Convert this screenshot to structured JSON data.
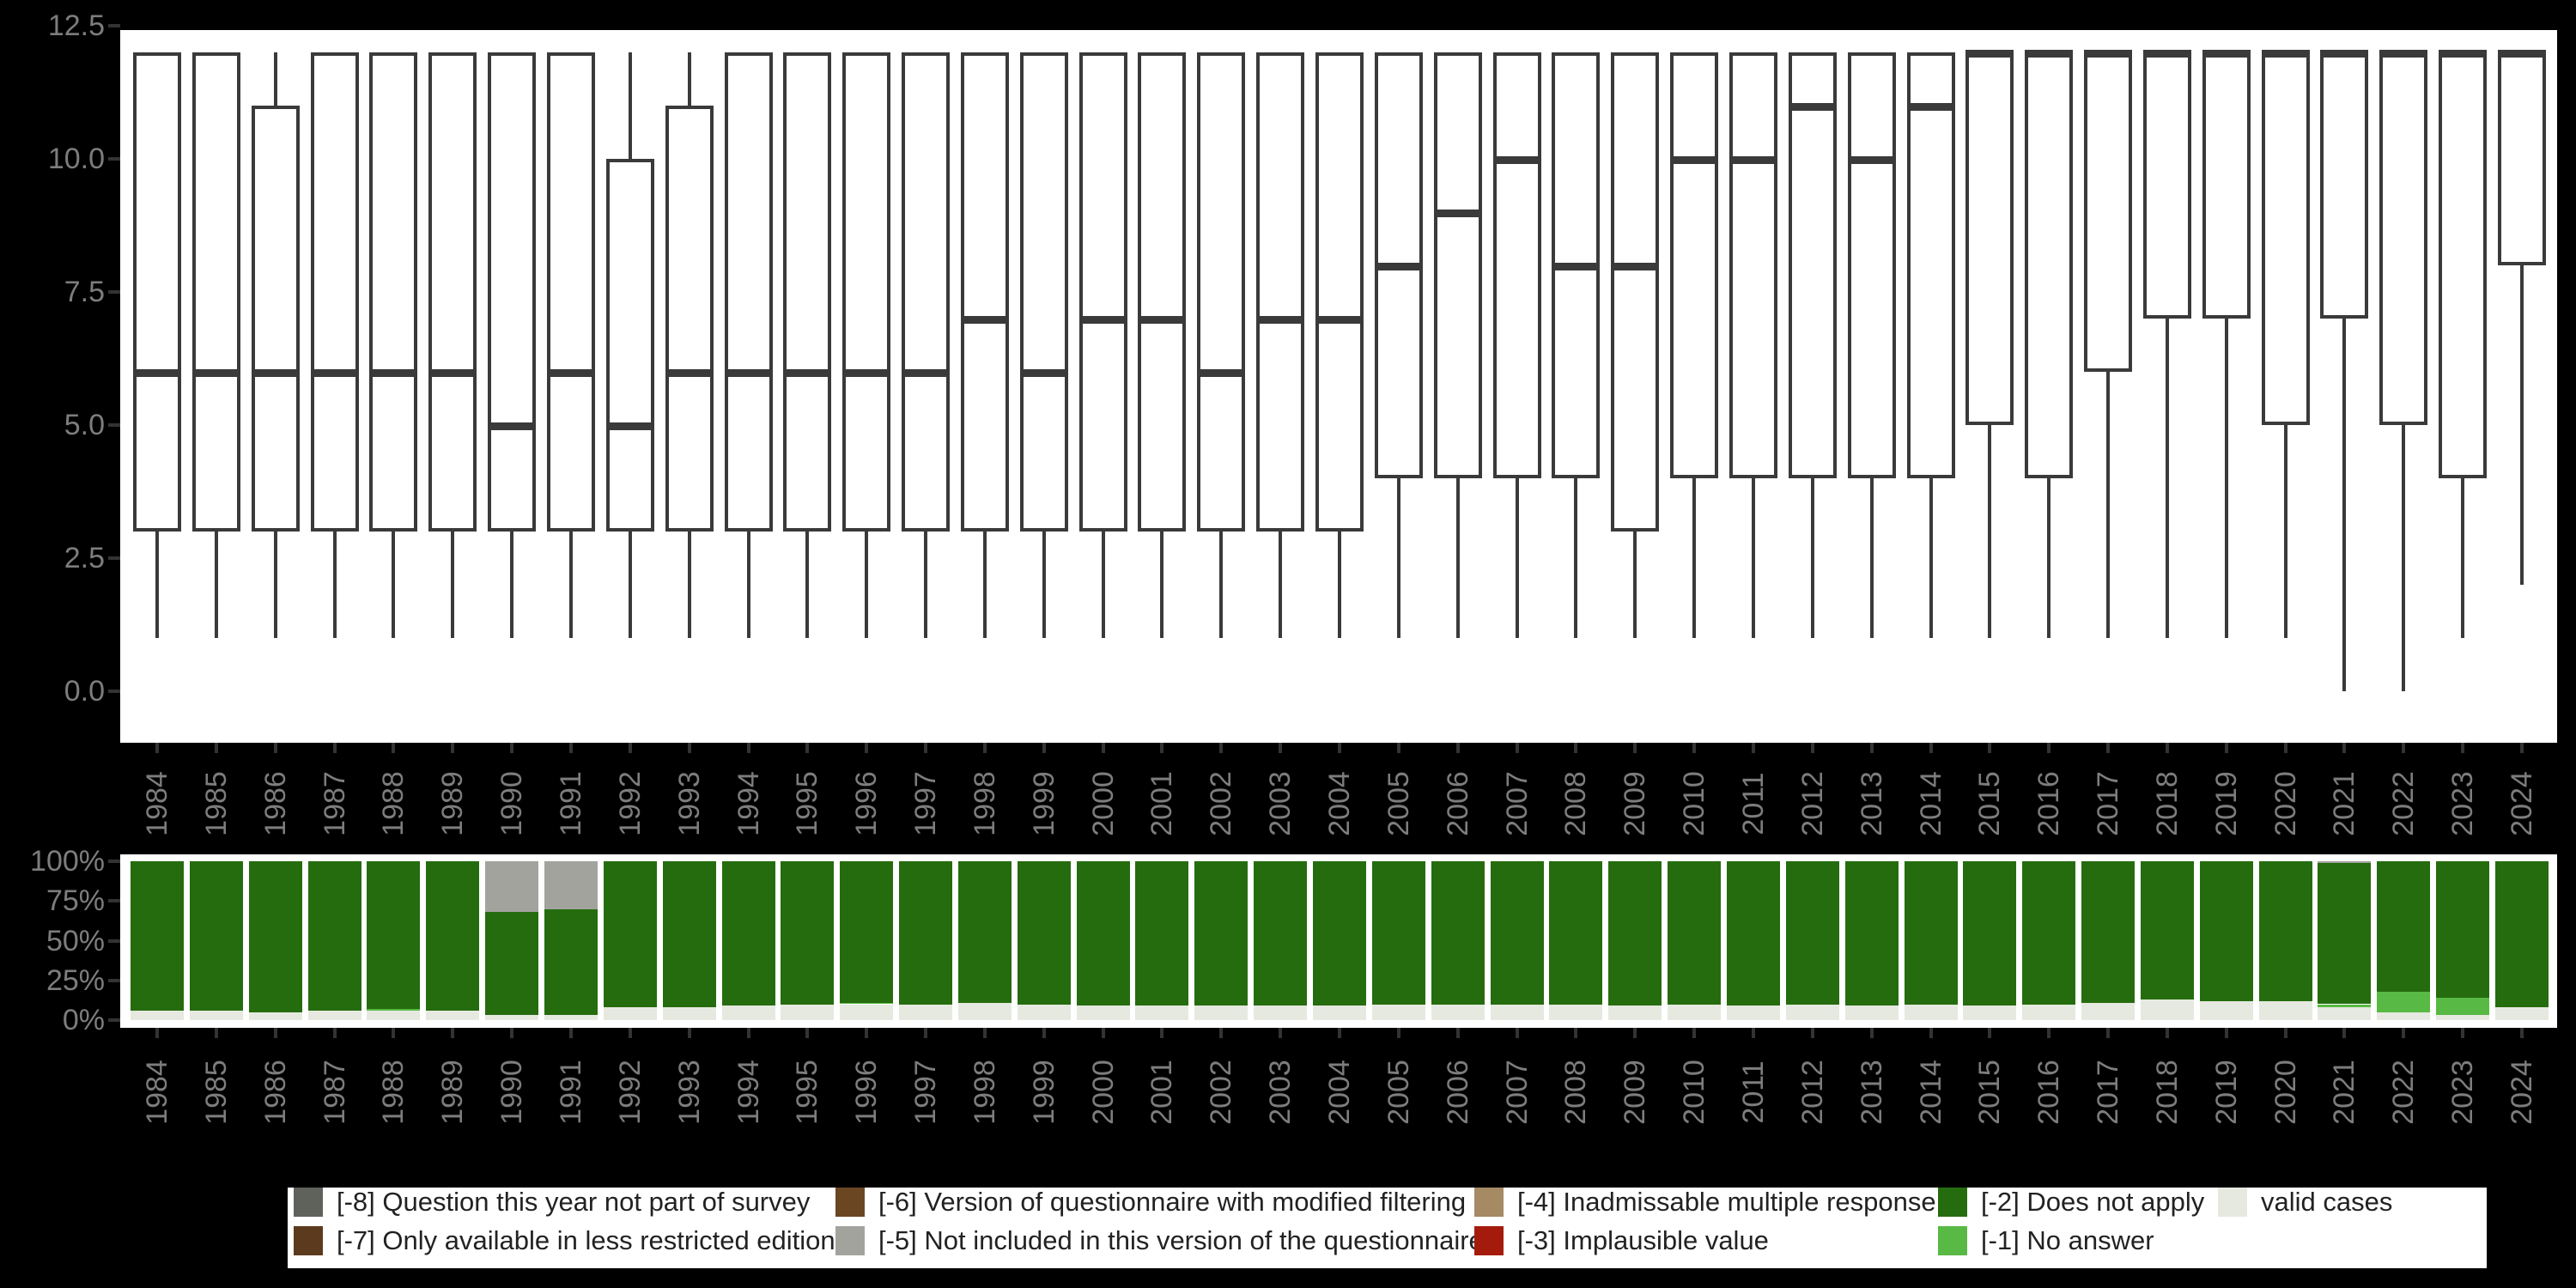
{
  "chart_data": [
    {
      "type": "boxplot",
      "title": "",
      "xlabel": "",
      "ylabel": "",
      "categories": [
        "1984",
        "1985",
        "1986",
        "1987",
        "1988",
        "1989",
        "1990",
        "1991",
        "1992",
        "1993",
        "1994",
        "1995",
        "1996",
        "1997",
        "1998",
        "1999",
        "2000",
        "2001",
        "2002",
        "2003",
        "2004",
        "2005",
        "2006",
        "2007",
        "2008",
        "2009",
        "2010",
        "2011",
        "2012",
        "2013",
        "2014",
        "2015",
        "2016",
        "2017",
        "2018",
        "2019",
        "2020",
        "2021",
        "2022",
        "2023",
        "2024"
      ],
      "ytick_labels": [
        "0.0",
        "2.5",
        "5.0",
        "7.5",
        "10.0",
        "12.5"
      ],
      "yticks": [
        0.0,
        2.5,
        5.0,
        7.5,
        10.0,
        12.5
      ],
      "ylim": [
        -1.0,
        12.6
      ],
      "grid": "off",
      "boxes": [
        {
          "year": "1984",
          "low": 1,
          "q1": 3,
          "median": 6,
          "q3": 12,
          "high": 12
        },
        {
          "year": "1985",
          "low": 1,
          "q1": 3,
          "median": 6,
          "q3": 12,
          "high": 12
        },
        {
          "year": "1986",
          "low": 1,
          "q1": 3,
          "median": 6,
          "q3": 11,
          "high": 12
        },
        {
          "year": "1987",
          "low": 1,
          "q1": 3,
          "median": 6,
          "q3": 12,
          "high": 12
        },
        {
          "year": "1988",
          "low": 1,
          "q1": 3,
          "median": 6,
          "q3": 12,
          "high": 12
        },
        {
          "year": "1989",
          "low": 1,
          "q1": 3,
          "median": 6,
          "q3": 12,
          "high": 12
        },
        {
          "year": "1990",
          "low": 1,
          "q1": 3,
          "median": 5,
          "q3": 12,
          "high": 12
        },
        {
          "year": "1991",
          "low": 1,
          "q1": 3,
          "median": 6,
          "q3": 12,
          "high": 12
        },
        {
          "year": "1992",
          "low": 1,
          "q1": 3,
          "median": 5,
          "q3": 10,
          "high": 12
        },
        {
          "year": "1993",
          "low": 1,
          "q1": 3,
          "median": 6,
          "q3": 11,
          "high": 12
        },
        {
          "year": "1994",
          "low": 1,
          "q1": 3,
          "median": 6,
          "q3": 12,
          "high": 12
        },
        {
          "year": "1995",
          "low": 1,
          "q1": 3,
          "median": 6,
          "q3": 12,
          "high": 12
        },
        {
          "year": "1996",
          "low": 1,
          "q1": 3,
          "median": 6,
          "q3": 12,
          "high": 12
        },
        {
          "year": "1997",
          "low": 1,
          "q1": 3,
          "median": 6,
          "q3": 12,
          "high": 12
        },
        {
          "year": "1998",
          "low": 1,
          "q1": 3,
          "median": 7,
          "q3": 12,
          "high": 12
        },
        {
          "year": "1999",
          "low": 1,
          "q1": 3,
          "median": 6,
          "q3": 12,
          "high": 12
        },
        {
          "year": "2000",
          "low": 1,
          "q1": 3,
          "median": 7,
          "q3": 12,
          "high": 12
        },
        {
          "year": "2001",
          "low": 1,
          "q1": 3,
          "median": 7,
          "q3": 12,
          "high": 12
        },
        {
          "year": "2002",
          "low": 1,
          "q1": 3,
          "median": 6,
          "q3": 12,
          "high": 12
        },
        {
          "year": "2003",
          "low": 1,
          "q1": 3,
          "median": 7,
          "q3": 12,
          "high": 12
        },
        {
          "year": "2004",
          "low": 1,
          "q1": 3,
          "median": 7,
          "q3": 12,
          "high": 12
        },
        {
          "year": "2005",
          "low": 1,
          "q1": 4,
          "median": 8,
          "q3": 12,
          "high": 12
        },
        {
          "year": "2006",
          "low": 1,
          "q1": 4,
          "median": 9,
          "q3": 12,
          "high": 12
        },
        {
          "year": "2007",
          "low": 1,
          "q1": 4,
          "median": 10,
          "q3": 12,
          "high": 12
        },
        {
          "year": "2008",
          "low": 1,
          "q1": 4,
          "median": 8,
          "q3": 12,
          "high": 12
        },
        {
          "year": "2009",
          "low": 1,
          "q1": 3,
          "median": 8,
          "q3": 12,
          "high": 12
        },
        {
          "year": "2010",
          "low": 1,
          "q1": 4,
          "median": 10,
          "q3": 12,
          "high": 12
        },
        {
          "year": "2011",
          "low": 1,
          "q1": 4,
          "median": 10,
          "q3": 12,
          "high": 12
        },
        {
          "year": "2012",
          "low": 1,
          "q1": 4,
          "median": 11,
          "q3": 12,
          "high": 12
        },
        {
          "year": "2013",
          "low": 1,
          "q1": 4,
          "median": 10,
          "q3": 12,
          "high": 12
        },
        {
          "year": "2014",
          "low": 1,
          "q1": 4,
          "median": 11,
          "q3": 12,
          "high": 12
        },
        {
          "year": "2015",
          "low": 1,
          "q1": 5,
          "median": 12,
          "q3": 12,
          "high": 12
        },
        {
          "year": "2016",
          "low": 1,
          "q1": 4,
          "median": 12,
          "q3": 12,
          "high": 12
        },
        {
          "year": "2017",
          "low": 1,
          "q1": 6,
          "median": 12,
          "q3": 12,
          "high": 12
        },
        {
          "year": "2018",
          "low": 1,
          "q1": 7,
          "median": 12,
          "q3": 12,
          "high": 12
        },
        {
          "year": "2019",
          "low": 1,
          "q1": 7,
          "median": 12,
          "q3": 12,
          "high": 12
        },
        {
          "year": "2020",
          "low": 1,
          "q1": 5,
          "median": 12,
          "q3": 12,
          "high": 12
        },
        {
          "year": "2021",
          "low": 0,
          "q1": 7,
          "median": 12,
          "q3": 12,
          "high": 12
        },
        {
          "year": "2022",
          "low": 0,
          "q1": 5,
          "median": 12,
          "q3": 12,
          "high": 12
        },
        {
          "year": "2023",
          "low": 1,
          "q1": 4,
          "median": 12,
          "q3": 12,
          "high": 12
        },
        {
          "year": "2024",
          "low": 2,
          "q1": 8,
          "median": 12,
          "q3": 12,
          "high": 12
        }
      ]
    },
    {
      "type": "bar",
      "subtype": "stacked-percent",
      "title": "",
      "xlabel": "",
      "ylabel": "",
      "categories": [
        "1984",
        "1985",
        "1986",
        "1987",
        "1988",
        "1989",
        "1990",
        "1991",
        "1992",
        "1993",
        "1994",
        "1995",
        "1996",
        "1997",
        "1998",
        "1999",
        "2000",
        "2001",
        "2002",
        "2003",
        "2004",
        "2005",
        "2006",
        "2007",
        "2008",
        "2009",
        "2010",
        "2011",
        "2012",
        "2013",
        "2014",
        "2015",
        "2016",
        "2017",
        "2018",
        "2019",
        "2020",
        "2021",
        "2022",
        "2023",
        "2024"
      ],
      "ytick_labels": [
        "0%",
        "25%",
        "50%",
        "75%",
        "100%"
      ],
      "yticks": [
        0,
        25,
        50,
        75,
        100
      ],
      "ylim": [
        0,
        100
      ],
      "grid": "off",
      "stack_order_bottom_to_top": [
        "valid cases",
        "[-1] No answer",
        "[-2] Does not apply",
        "[-5] Not included in this version of the questionnaire"
      ],
      "series": [
        {
          "name": "valid cases",
          "color": "#e6e9e0",
          "values": [
            6,
            6,
            5,
            6,
            6,
            6,
            3,
            3,
            8,
            8,
            9,
            10,
            10,
            10,
            11,
            10,
            9,
            9,
            9,
            9,
            9,
            10,
            10,
            10,
            10,
            9,
            10,
            9,
            10,
            9,
            10,
            9,
            10,
            11,
            13,
            12,
            12,
            8,
            5,
            3,
            8
          ]
        },
        {
          "name": "[-1] No answer",
          "color": "#58b944",
          "values": [
            0,
            0,
            0,
            0,
            1,
            0,
            0,
            0,
            0,
            0,
            0,
            0,
            1,
            0,
            0,
            0,
            0,
            0,
            0,
            0,
            0,
            0,
            0,
            0,
            0,
            0,
            0,
            0,
            0,
            0,
            0,
            0,
            0,
            0,
            0,
            0,
            0,
            2,
            13,
            11,
            0
          ]
        },
        {
          "name": "[-2] Does not apply",
          "color": "#256c0e",
          "values": [
            94,
            94,
            95,
            94,
            93,
            94,
            65,
            67,
            92,
            92,
            91,
            90,
            89,
            90,
            89,
            90,
            91,
            91,
            91,
            91,
            91,
            90,
            90,
            90,
            90,
            91,
            90,
            91,
            90,
            91,
            90,
            91,
            90,
            89,
            87,
            88,
            88,
            89,
            82,
            86,
            92
          ]
        },
        {
          "name": "[-5] Not included in this version of the questionnaire",
          "color": "#a3a39e",
          "values": [
            0,
            0,
            0,
            0,
            0,
            0,
            32,
            30,
            0,
            0,
            0,
            0,
            0,
            0,
            0,
            0,
            0,
            0,
            0,
            0,
            0,
            0,
            0,
            0,
            0,
            0,
            0,
            0,
            0,
            0,
            0,
            0,
            0,
            0,
            0,
            0,
            0,
            1,
            0,
            0,
            0
          ]
        }
      ]
    }
  ],
  "legend": {
    "rows": [
      [
        {
          "label": "[-8] Question this year not part of survey",
          "color": "#5e625b"
        },
        {
          "label": "[-6] Version of questionnaire with modified filtering",
          "color": "#6b4623"
        },
        {
          "label": "[-4] Inadmissable multiple response",
          "color": "#a68a64"
        },
        {
          "label": "[-2] Does not apply",
          "color": "#256c0e"
        },
        {
          "label": "valid cases",
          "color": "#e6e9e0"
        }
      ],
      [
        {
          "label": "[-7] Only available in less restricted edition",
          "color": "#5c3a1e"
        },
        {
          "label": "[-5] Not included in this version of the questionnaire",
          "color": "#a3a39e"
        },
        {
          "label": "[-3] Implausible value",
          "color": "#a51b0b"
        },
        {
          "label": "[-1] No answer",
          "color": "#58b944"
        }
      ]
    ]
  },
  "colors": {
    "background": "#000000",
    "panel": "#ffffff",
    "box_stroke": "#3a3a3a",
    "axis_text": "#7d7d7d",
    "tick": "#333333",
    "legend_text": "#222222"
  }
}
